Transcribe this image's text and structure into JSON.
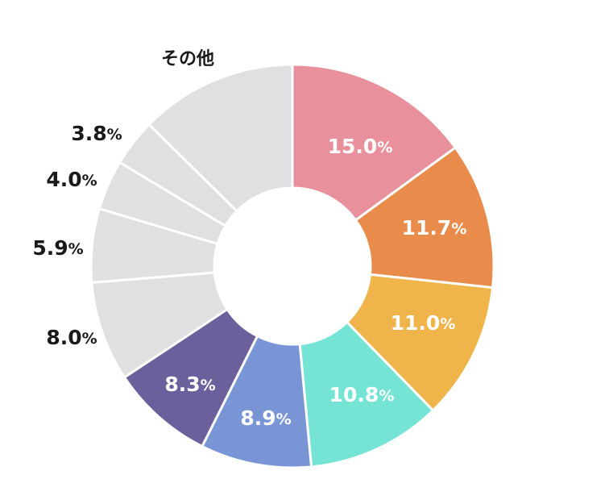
{
  "chart_data": {
    "type": "pie",
    "style": "donut",
    "slices": [
      {
        "label": "15.0%",
        "value": 15.0,
        "color": "#e8909c",
        "label_position": "inside"
      },
      {
        "label": "11.7%",
        "value": 11.7,
        "color": "#e88b4b",
        "label_position": "inside"
      },
      {
        "label": "11.0%",
        "value": 11.0,
        "color": "#efb44a",
        "label_position": "inside"
      },
      {
        "label": "10.8%",
        "value": 10.8,
        "color": "#76e4d4",
        "label_position": "inside"
      },
      {
        "label": "8.9%",
        "value": 8.9,
        "color": "#7995d5",
        "label_position": "inside"
      },
      {
        "label": "8.3%",
        "value": 8.3,
        "color": "#6b5f9c",
        "label_position": "inside"
      },
      {
        "label": "8.0%",
        "value": 8.0,
        "color": "#e0e0e3",
        "label_position": "outside"
      },
      {
        "label": "5.9%",
        "value": 5.9,
        "color": "#e0e0e3",
        "label_position": "outside"
      },
      {
        "label": "4.0%",
        "value": 4.0,
        "color": "#e0e0e3",
        "label_position": "outside"
      },
      {
        "label": "3.8%",
        "value": 3.8,
        "color": "#e0e0e3",
        "label_position": "outside"
      },
      {
        "label": "その他",
        "value": 12.6,
        "color": "#e0e0e3",
        "label_position": "outside"
      }
    ]
  }
}
